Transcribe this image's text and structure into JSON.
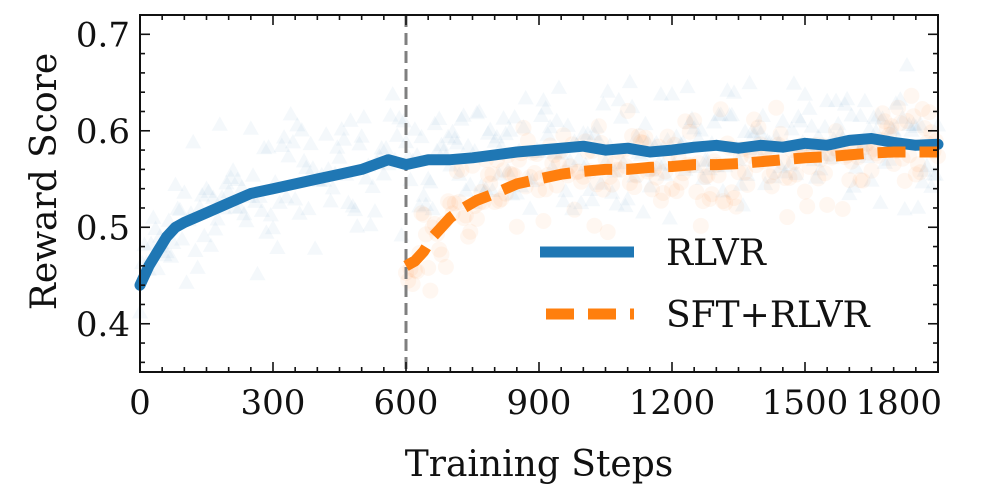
{
  "chart_data": {
    "type": "line",
    "title": "",
    "xlabel": "Training Steps",
    "ylabel": "Reward Score",
    "xlim": [
      0,
      1800
    ],
    "ylim": [
      0.35,
      0.72
    ],
    "xticks": [
      0,
      300,
      600,
      900,
      1200,
      1500,
      1800
    ],
    "xtick_labels": [
      "0",
      "300",
      "600",
      "900",
      "1200",
      "1500",
      "1800"
    ],
    "yticks": [
      0.4,
      0.5,
      0.6,
      0.7
    ],
    "ytick_labels": [
      "0.4",
      "0.5",
      "0.6",
      "0.7"
    ],
    "grid": false,
    "legend_position": "center-right",
    "vline_x": 600,
    "series": [
      {
        "name": "RLVR",
        "color": "#1f77b4",
        "style": "solid",
        "x": [
          0,
          20,
          40,
          60,
          80,
          100,
          150,
          200,
          250,
          300,
          350,
          400,
          450,
          500,
          530,
          560,
          600,
          650,
          700,
          750,
          800,
          850,
          900,
          950,
          1000,
          1050,
          1100,
          1150,
          1200,
          1250,
          1300,
          1350,
          1400,
          1450,
          1500,
          1550,
          1600,
          1650,
          1700,
          1750,
          1800
        ],
        "y": [
          0.44,
          0.46,
          0.475,
          0.49,
          0.5,
          0.505,
          0.515,
          0.525,
          0.535,
          0.54,
          0.545,
          0.55,
          0.555,
          0.56,
          0.565,
          0.57,
          0.565,
          0.57,
          0.57,
          0.572,
          0.575,
          0.578,
          0.58,
          0.582,
          0.584,
          0.58,
          0.582,
          0.578,
          0.58,
          0.583,
          0.585,
          0.582,
          0.585,
          0.583,
          0.587,
          0.585,
          0.59,
          0.592,
          0.588,
          0.585,
          0.586
        ]
      },
      {
        "name": "SFT+RLVR",
        "color": "#ff7f0e",
        "style": "dashed",
        "x": [
          600,
          620,
          640,
          660,
          680,
          700,
          730,
          760,
          800,
          850,
          900,
          950,
          1000,
          1050,
          1100,
          1150,
          1200,
          1250,
          1300,
          1350,
          1400,
          1450,
          1500,
          1550,
          1600,
          1650,
          1700,
          1750,
          1800
        ],
        "y": [
          0.46,
          0.465,
          0.475,
          0.49,
          0.5,
          0.51,
          0.52,
          0.528,
          0.535,
          0.545,
          0.55,
          0.555,
          0.558,
          0.56,
          0.56,
          0.562,
          0.563,
          0.565,
          0.565,
          0.566,
          0.568,
          0.57,
          0.572,
          0.573,
          0.575,
          0.577,
          0.578,
          0.578,
          0.578
        ]
      }
    ]
  }
}
